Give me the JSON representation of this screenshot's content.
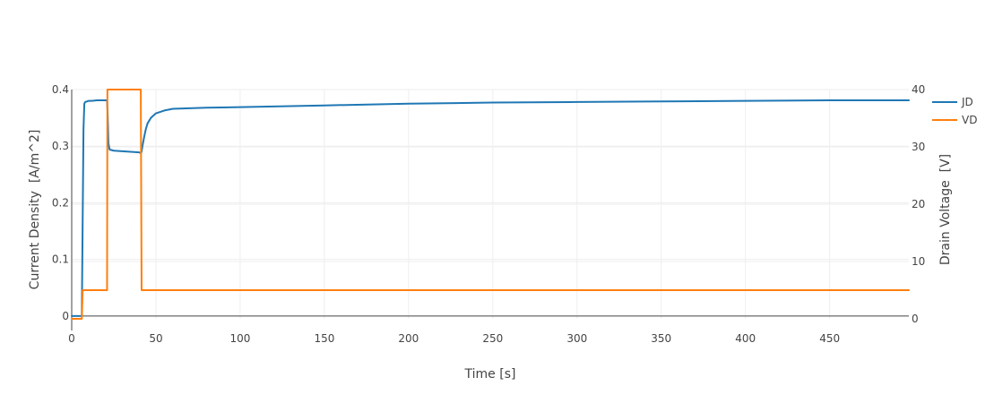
{
  "chart_data": {
    "type": "line",
    "title": "",
    "xlabel": "Time [s]",
    "ylabel": "Current Density  [A/m^2]",
    "y2label": "Drain Voltage  [V]",
    "xlim": [
      0,
      497
    ],
    "ylim": [
      -0.005,
      0.4
    ],
    "y2lim": [
      0,
      40
    ],
    "xticks": [
      "0",
      "50",
      "100",
      "150",
      "200",
      "250",
      "300",
      "350",
      "400",
      "450"
    ],
    "yticks": [
      "0",
      "0.1",
      "0.2",
      "0.3",
      "0.4"
    ],
    "y2ticks": [
      "0",
      "10",
      "20",
      "30",
      "40"
    ],
    "grid": true,
    "legend_position": "top-right",
    "series": [
      {
        "name": "JD",
        "axis": "left",
        "color": "#1f77b4",
        "x": [
          0,
          6,
          7,
          7.5,
          8,
          9,
          10,
          12,
          15,
          20,
          21,
          21.3,
          21.8,
          22.5,
          25,
          30,
          35,
          40,
          41,
          41.5,
          42,
          43,
          44,
          45,
          47,
          50,
          55,
          60,
          80,
          100,
          150,
          200,
          250,
          300,
          350,
          400,
          450,
          497
        ],
        "y": [
          0,
          0,
          0.33,
          0.375,
          0.378,
          0.379,
          0.38,
          0.38,
          0.381,
          0.381,
          0.381,
          0.36,
          0.305,
          0.294,
          0.292,
          0.291,
          0.29,
          0.289,
          0.288,
          0.29,
          0.3,
          0.316,
          0.33,
          0.34,
          0.35,
          0.358,
          0.363,
          0.366,
          0.368,
          0.369,
          0.372,
          0.375,
          0.377,
          0.378,
          0.379,
          0.38,
          0.381,
          0.381
        ]
      },
      {
        "name": "VD",
        "axis": "right",
        "color": "#ff7f0e",
        "x": [
          0,
          6,
          6.5,
          21,
          21.2,
          41,
          41.5,
          497
        ],
        "y": [
          0,
          0,
          5,
          5,
          40,
          40,
          5,
          5
        ]
      }
    ]
  }
}
